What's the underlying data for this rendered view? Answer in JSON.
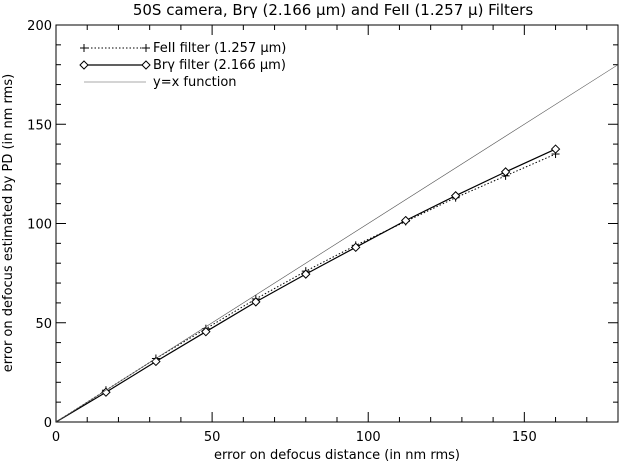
{
  "chart_data": {
    "type": "line",
    "title": "50S camera, Brγ (2.166 µm) and FeII (1.257 µ) Filters",
    "xlabel": "error on defocus distance (in nm rms)",
    "ylabel": "error on defocus estimated by PD (in nm rms)",
    "xlim": [
      0,
      180
    ],
    "ylim": [
      0,
      200
    ],
    "x_ticks": [
      0,
      50,
      100,
      150
    ],
    "y_ticks": [
      0,
      50,
      100,
      150,
      200
    ],
    "x_tick_labels": [
      "0",
      "50",
      "100",
      "150"
    ],
    "y_tick_labels": [
      "0",
      "50",
      "100",
      "150",
      "200"
    ],
    "grid": false,
    "legend": {
      "placement": "top-left"
    },
    "series": [
      {
        "name": "FeII filter (1.257 µm)",
        "style": "dotted",
        "marker": "plus",
        "x": [
          0,
          16,
          32,
          48,
          64,
          80,
          96,
          112,
          128,
          144,
          160
        ],
        "y": [
          0,
          16,
          32,
          47,
          62,
          76,
          89,
          101,
          113,
          124,
          135
        ]
      },
      {
        "name": "Brγ filter (2.166 µm)",
        "style": "solid",
        "marker": "diamond",
        "x": [
          0,
          16,
          32,
          48,
          64,
          80,
          96,
          112,
          128,
          144,
          160
        ],
        "y": [
          0,
          15,
          30.5,
          45.5,
          60.5,
          74.5,
          88,
          101.5,
          114,
          126,
          137.5
        ]
      },
      {
        "name": "y=x function",
        "style": "thin",
        "marker": "none",
        "x": [
          0,
          180
        ],
        "y": [
          0,
          180
        ]
      }
    ]
  }
}
